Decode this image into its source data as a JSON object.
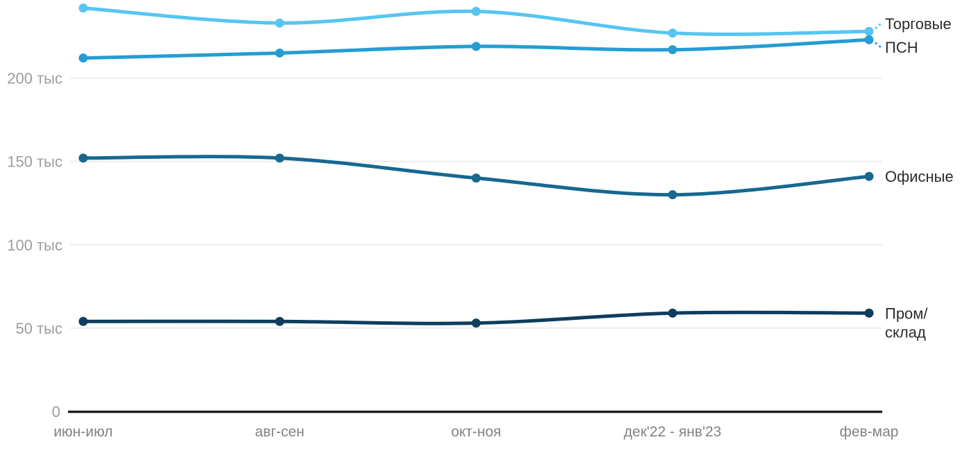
{
  "chart_data": {
    "type": "line",
    "title": "",
    "xlabel": "",
    "ylabel": "",
    "categories": [
      "июн-июл",
      "авг-сен",
      "окт-ноя",
      "дек'22 - янв'23",
      "фев-мар"
    ],
    "series": [
      {
        "name": "Торговые",
        "slug": "torgovye",
        "color": "#57C5F1",
        "values": [
          242,
          233,
          240,
          227,
          228
        ],
        "label_lines": [
          "Торговые"
        ]
      },
      {
        "name": "ПСН",
        "slug": "psn",
        "color": "#249DD4",
        "values": [
          212,
          215,
          219,
          217,
          223
        ],
        "label_lines": [
          "ПСН"
        ]
      },
      {
        "name": "Офисные",
        "slug": "ofisnye",
        "color": "#176890",
        "values": [
          152,
          152,
          140,
          130,
          141
        ],
        "label_lines": [
          "Офисные"
        ]
      },
      {
        "name": "Пром/склад",
        "slug": "prom-sklad",
        "color": "#0E3D5E",
        "values": [
          54,
          54,
          53,
          59,
          59
        ],
        "label_lines": [
          "Пром/",
          "склад"
        ]
      }
    ],
    "yticks": [
      {
        "value": 0,
        "label": "0"
      },
      {
        "value": 50,
        "label": "50 тыс"
      },
      {
        "value": 100,
        "label": "100 тыс"
      },
      {
        "value": 150,
        "label": "150 тыс"
      },
      {
        "value": 200,
        "label": "200 тыс"
      }
    ],
    "ylim": [
      0,
      245
    ],
    "grid": true,
    "legend_position": "right-of-line-ends",
    "colors": {
      "gridline": "#ececec",
      "axis_line": "#212121",
      "ytick_text": "#9d9d9d",
      "xtick_text": "#828282",
      "legend_text": "#2b2b2b",
      "background": "#ffffff"
    }
  }
}
